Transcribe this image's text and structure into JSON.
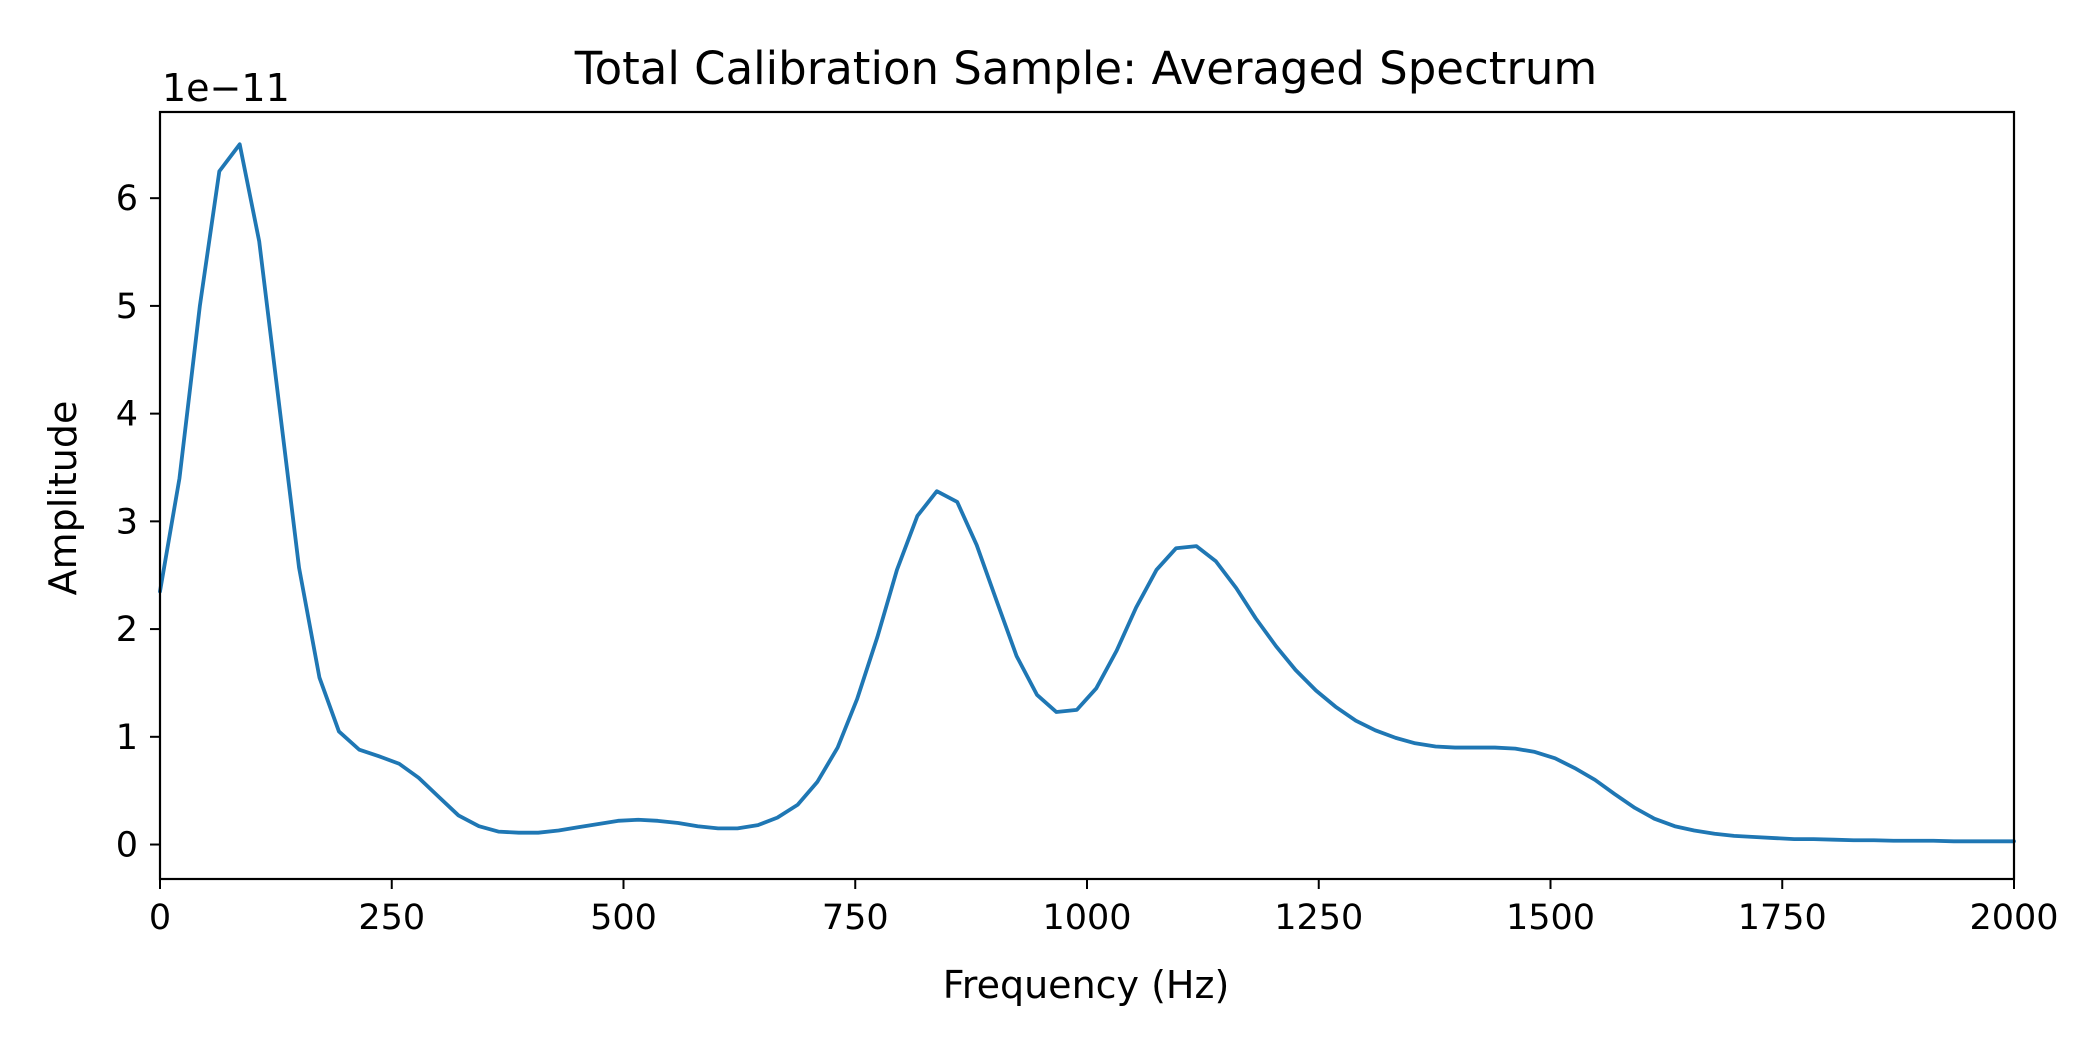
{
  "chart_data": {
    "type": "line",
    "title": "Total Calibration Sample: Averaged Spectrum",
    "xlabel": "Frequency (Hz)",
    "ylabel": "Amplitude",
    "y_offset_label": "1e−11",
    "xlim": [
      0,
      2000
    ],
    "ylim": [
      -0.32,
      6.8
    ],
    "x_ticks": [
      0,
      250,
      500,
      750,
      1000,
      1250,
      1500,
      1750,
      2000
    ],
    "x_tick_labels": [
      "0",
      "250",
      "500",
      "750",
      "1000",
      "1250",
      "1500",
      "1750",
      "2000"
    ],
    "y_ticks": [
      0,
      1,
      2,
      3,
      4,
      5,
      6
    ],
    "y_tick_labels": [
      "0",
      "1",
      "2",
      "3",
      "4",
      "5",
      "6"
    ],
    "grid": false,
    "legend": "none",
    "series": [
      {
        "color": "#1f77b4",
        "x": [
          0,
          21,
          43,
          64,
          86,
          107,
          129,
          150,
          172,
          193,
          215,
          236,
          258,
          279,
          301,
          322,
          344,
          365,
          387,
          408,
          430,
          451,
          473,
          494,
          516,
          537,
          559,
          580,
          602,
          623,
          645,
          666,
          688,
          709,
          731,
          752,
          774,
          795,
          817,
          838,
          860,
          881,
          903,
          924,
          946,
          967,
          989,
          1010,
          1032,
          1053,
          1075,
          1096,
          1118,
          1139,
          1161,
          1182,
          1204,
          1225,
          1247,
          1268,
          1290,
          1311,
          1333,
          1354,
          1376,
          1397,
          1419,
          1440,
          1462,
          1483,
          1505,
          1526,
          1548,
          1569,
          1591,
          1612,
          1634,
          1655,
          1677,
          1698,
          1720,
          1741,
          1763,
          1784,
          1806,
          1827,
          1849,
          1870,
          1892,
          1913,
          1935,
          1956,
          1978,
          2000
        ],
        "y": [
          2.35,
          3.4,
          5.0,
          6.25,
          6.5,
          5.6,
          4.05,
          2.57,
          1.55,
          1.05,
          0.88,
          0.82,
          0.75,
          0.62,
          0.44,
          0.27,
          0.17,
          0.12,
          0.11,
          0.11,
          0.13,
          0.16,
          0.19,
          0.22,
          0.23,
          0.22,
          0.2,
          0.17,
          0.15,
          0.15,
          0.18,
          0.25,
          0.37,
          0.58,
          0.9,
          1.35,
          1.93,
          2.55,
          3.05,
          3.28,
          3.18,
          2.78,
          2.25,
          1.75,
          1.39,
          1.23,
          1.25,
          1.45,
          1.8,
          2.2,
          2.55,
          2.75,
          2.77,
          2.63,
          2.38,
          2.1,
          1.84,
          1.62,
          1.43,
          1.28,
          1.15,
          1.06,
          0.99,
          0.94,
          0.91,
          0.9,
          0.9,
          0.9,
          0.89,
          0.86,
          0.8,
          0.71,
          0.6,
          0.47,
          0.34,
          0.24,
          0.17,
          0.13,
          0.1,
          0.08,
          0.07,
          0.06,
          0.05,
          0.05,
          0.045,
          0.04,
          0.04,
          0.035,
          0.035,
          0.035,
          0.03,
          0.03,
          0.03,
          0.03
        ]
      }
    ]
  }
}
